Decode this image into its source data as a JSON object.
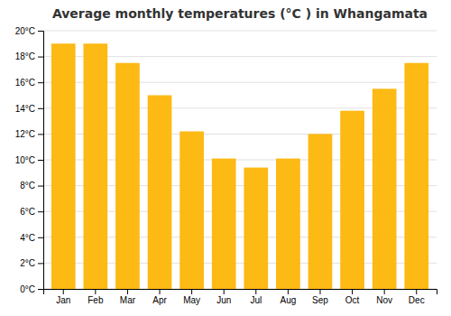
{
  "chart_data": {
    "type": "bar",
    "title": "Average monthly temperatures (°C ) in Whangamata",
    "categories": [
      "Jan",
      "Feb",
      "Mar",
      "Apr",
      "May",
      "Jun",
      "Jul",
      "Aug",
      "Sep",
      "Oct",
      "Nov",
      "Dec"
    ],
    "values": [
      19.0,
      19.0,
      17.5,
      15.0,
      12.2,
      10.1,
      9.4,
      10.1,
      12.0,
      13.8,
      15.5,
      17.5
    ],
    "color": "#FDB914",
    "ylim": [
      0,
      20
    ],
    "yticks": [
      {
        "value": 0,
        "label": "0°C"
      },
      {
        "value": 2,
        "label": "2°C"
      },
      {
        "value": 4,
        "label": "4°C"
      },
      {
        "value": 6,
        "label": "6°C"
      },
      {
        "value": 8,
        "label": "8°C"
      },
      {
        "value": 10,
        "label": "10°C"
      },
      {
        "value": 12,
        "label": "12°C"
      },
      {
        "value": 14,
        "label": "14°C"
      },
      {
        "value": 16,
        "label": "16°C"
      },
      {
        "value": 18,
        "label": "18°C"
      },
      {
        "value": 20,
        "label": "20°C"
      }
    ],
    "grid": true
  }
}
